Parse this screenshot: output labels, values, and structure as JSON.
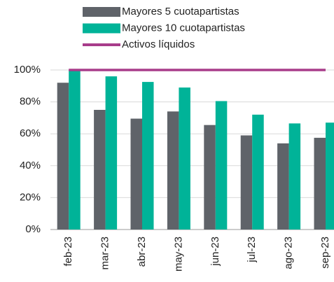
{
  "chart_data": {
    "type": "bar",
    "categories": [
      "feb-23",
      "mar-23",
      "abr-23",
      "may-23",
      "jun-23",
      "jul-23",
      "ago-23",
      "sep-23"
    ],
    "series": [
      {
        "name": "Mayores 5 cuotapartistas",
        "color": "#5f6369",
        "type": "bar",
        "values": [
          92,
          75,
          69.5,
          74,
          65.5,
          59,
          54,
          57.5
        ]
      },
      {
        "name": "Mayores 10 cuotapartistas",
        "color": "#00b398",
        "type": "bar",
        "values": [
          100,
          96,
          92.5,
          89,
          80.5,
          72,
          66.5,
          67
        ]
      },
      {
        "name": "Activos líquidos",
        "color": "#a83c8a",
        "type": "line",
        "values": [
          100,
          100,
          100,
          100,
          100,
          100,
          100,
          100
        ]
      }
    ],
    "ylim": [
      0,
      100
    ],
    "yticks": [
      {
        "value": 0,
        "label": "0%"
      },
      {
        "value": 20,
        "label": "20%"
      },
      {
        "value": 40,
        "label": "40%"
      },
      {
        "value": 60,
        "label": "60%"
      },
      {
        "value": 80,
        "label": "80%"
      },
      {
        "value": 100,
        "label": "100%"
      }
    ],
    "grid": true
  }
}
